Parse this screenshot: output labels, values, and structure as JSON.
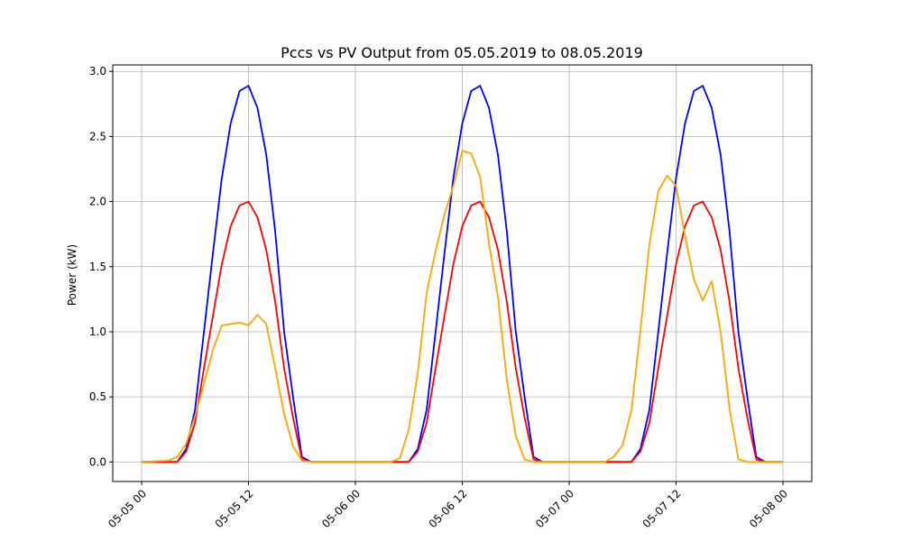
{
  "chart_data": {
    "type": "line",
    "title": "Pccs vs PV Output from 05.05.2019 to 08.05.2019",
    "xlabel": "",
    "ylabel": "Power (kW)",
    "x_range_hours": [
      0,
      72
    ],
    "ylim": [
      -0.15,
      3.05
    ],
    "x_ticks": [
      {
        "hour": 0,
        "label": "05-05 00"
      },
      {
        "hour": 12,
        "label": "05-05 12"
      },
      {
        "hour": 24,
        "label": "05-06 00"
      },
      {
        "hour": 36,
        "label": "05-06 12"
      },
      {
        "hour": 48,
        "label": "05-07 00"
      },
      {
        "hour": 60,
        "label": "05-07 12"
      },
      {
        "hour": 72,
        "label": "05-08 00"
      }
    ],
    "y_ticks": [
      0.0,
      0.5,
      1.0,
      1.5,
      2.0,
      2.5,
      3.0
    ],
    "y_tick_labels": [
      "0.0",
      "0.5",
      "1.0",
      "1.5",
      "2.0",
      "2.5",
      "3.0"
    ],
    "grid": true,
    "series": [
      {
        "color": "#0000ff",
        "x": [
          0,
          4,
          5,
          6,
          7,
          8,
          9,
          10,
          11,
          12,
          13,
          14,
          15,
          16,
          17,
          18,
          19,
          20,
          21,
          22,
          23,
          24,
          25,
          26,
          27,
          28,
          29,
          30,
          31,
          32,
          33,
          34,
          35,
          36,
          37,
          38,
          39,
          40,
          41,
          42,
          43,
          44,
          45,
          46,
          47,
          48,
          49,
          50,
          51,
          52,
          53,
          54,
          55,
          56,
          57,
          58,
          59,
          60,
          61,
          62,
          63,
          64,
          65,
          66,
          67,
          68,
          69,
          70,
          71,
          72
        ],
        "values": [
          0,
          0,
          0.1,
          0.4,
          1.0,
          1.6,
          2.18,
          2.6,
          2.85,
          2.89,
          2.72,
          2.36,
          1.77,
          1.0,
          0.5,
          0.04,
          0,
          0,
          0,
          0,
          0,
          0,
          0,
          0,
          0,
          0,
          0,
          0,
          0.1,
          0.4,
          1.0,
          1.6,
          2.18,
          2.6,
          2.85,
          2.89,
          2.72,
          2.36,
          1.77,
          1.0,
          0.5,
          0.04,
          0,
          0,
          0,
          0,
          0,
          0,
          0,
          0,
          0,
          0,
          0,
          0.1,
          0.4,
          1.0,
          1.6,
          2.18,
          2.6,
          2.85,
          2.89,
          2.72,
          2.36,
          1.77,
          1.0,
          0.5,
          0.04,
          0,
          0,
          0
        ]
      },
      {
        "color": "#ff0000",
        "x": [
          0,
          4,
          5,
          6,
          7,
          8,
          9,
          10,
          11,
          12,
          13,
          14,
          15,
          16,
          17,
          18,
          19,
          20,
          21,
          22,
          23,
          24,
          25,
          26,
          27,
          28,
          29,
          30,
          31,
          32,
          33,
          34,
          35,
          36,
          37,
          38,
          39,
          40,
          41,
          42,
          43,
          44,
          45,
          46,
          47,
          48,
          49,
          50,
          51,
          52,
          53,
          54,
          55,
          56,
          57,
          58,
          59,
          60,
          61,
          62,
          63,
          64,
          65,
          66,
          67,
          68,
          69,
          70,
          71,
          72
        ],
        "values": [
          0,
          0,
          0.08,
          0.3,
          0.72,
          1.12,
          1.52,
          1.81,
          1.97,
          2.0,
          1.88,
          1.63,
          1.23,
          0.72,
          0.34,
          0.02,
          0,
          0,
          0,
          0,
          0,
          0,
          0,
          0,
          0,
          0,
          0,
          0,
          0.08,
          0.3,
          0.72,
          1.12,
          1.52,
          1.81,
          1.97,
          2.0,
          1.88,
          1.63,
          1.23,
          0.72,
          0.34,
          0.02,
          0,
          0,
          0,
          0,
          0,
          0,
          0,
          0,
          0,
          0,
          0,
          0.08,
          0.3,
          0.72,
          1.12,
          1.52,
          1.81,
          1.97,
          2.0,
          1.88,
          1.63,
          1.23,
          0.72,
          0.34,
          0.02,
          0,
          0,
          0
        ]
      },
      {
        "color": "#ffa500",
        "x": [
          0,
          3,
          4,
          5,
          6,
          7,
          8,
          9,
          10,
          11,
          12,
          13,
          14,
          15,
          16,
          17,
          18,
          19,
          20,
          21,
          22,
          23,
          24,
          25,
          26,
          27,
          28,
          29,
          30,
          31,
          32,
          33,
          34,
          35,
          36,
          37,
          38,
          39,
          40,
          41,
          42,
          43,
          44,
          45,
          46,
          47,
          48,
          49,
          50,
          51,
          52,
          53,
          54,
          55,
          56,
          57,
          58,
          59,
          60,
          61,
          62,
          63,
          64,
          65,
          66,
          67,
          68,
          69,
          70,
          71,
          72
        ],
        "values": [
          0,
          0.01,
          0.04,
          0.14,
          0.35,
          0.6,
          0.86,
          1.05,
          1.06,
          1.07,
          1.05,
          1.13,
          1.06,
          0.72,
          0.37,
          0.12,
          0.01,
          0,
          0,
          0,
          0,
          0,
          0,
          0,
          0,
          0,
          0,
          0.03,
          0.25,
          0.68,
          1.3,
          1.62,
          1.9,
          2.12,
          2.39,
          2.37,
          2.19,
          1.68,
          1.27,
          0.63,
          0.2,
          0.02,
          0,
          0,
          0,
          0,
          0,
          0,
          0,
          0,
          0,
          0.04,
          0.13,
          0.4,
          1.01,
          1.67,
          2.08,
          2.2,
          2.12,
          1.74,
          1.4,
          1.24,
          1.39,
          1.0,
          0.41,
          0.02,
          0,
          0,
          0,
          0,
          0
        ]
      }
    ]
  }
}
